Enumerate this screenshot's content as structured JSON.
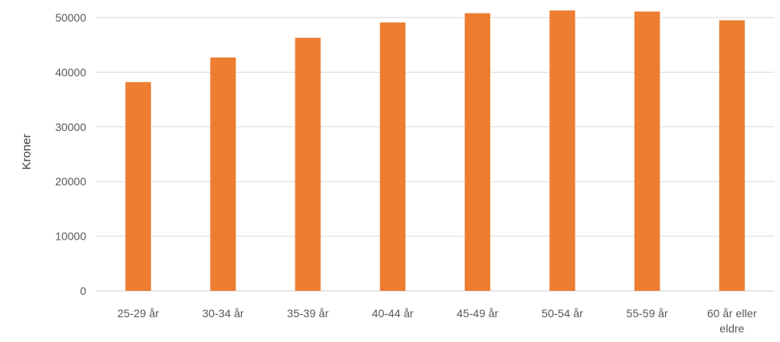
{
  "chart_data": {
    "type": "bar",
    "title": "",
    "xlabel": "",
    "ylabel": "Kroner",
    "categories": [
      "25-29 år",
      "30-34 år",
      "35-39 år",
      "40-44 år",
      "45-49 år",
      "50-54 år",
      "55-59 år",
      "60 år eller eldre"
    ],
    "values": [
      38200,
      42700,
      46300,
      49100,
      50800,
      51300,
      51100,
      49500
    ],
    "ylim": [
      0,
      50000
    ],
    "yticks": [
      "0",
      "10000",
      "20000",
      "30000",
      "40000",
      "50000"
    ],
    "grid": true,
    "legend": "none",
    "bar_color": "#ED7D31"
  }
}
